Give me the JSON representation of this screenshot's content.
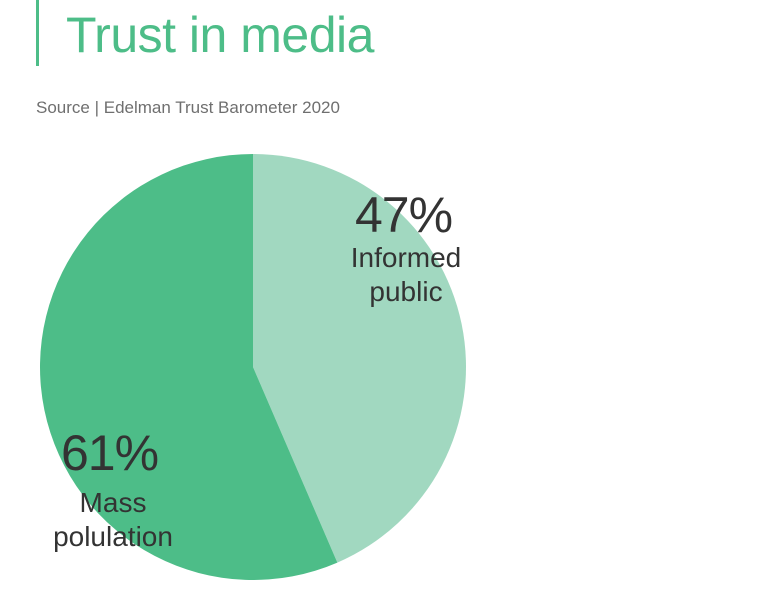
{
  "header": {
    "title": "Trust in media",
    "subtitle": "Source | Edelman Trust Barometer 2020"
  },
  "colors": {
    "accent": "#4dbd88",
    "slice_informed": "#a1d8c0",
    "slice_mass": "#4dbd88",
    "text_dark": "#333333"
  },
  "chart_data": {
    "type": "pie",
    "title": "Trust in media",
    "subtitle": "Source | Edelman Trust Barometer 2020",
    "slices": [
      {
        "label": "Informed public",
        "label_lines": [
          "Informed",
          "public"
        ],
        "value": 47,
        "display": "47%",
        "color": "#a1d8c0"
      },
      {
        "label": "Mass polulation",
        "label_lines": [
          "Mass",
          "polulation"
        ],
        "value": 61,
        "display": "61%",
        "color": "#4dbd88"
      }
    ]
  }
}
